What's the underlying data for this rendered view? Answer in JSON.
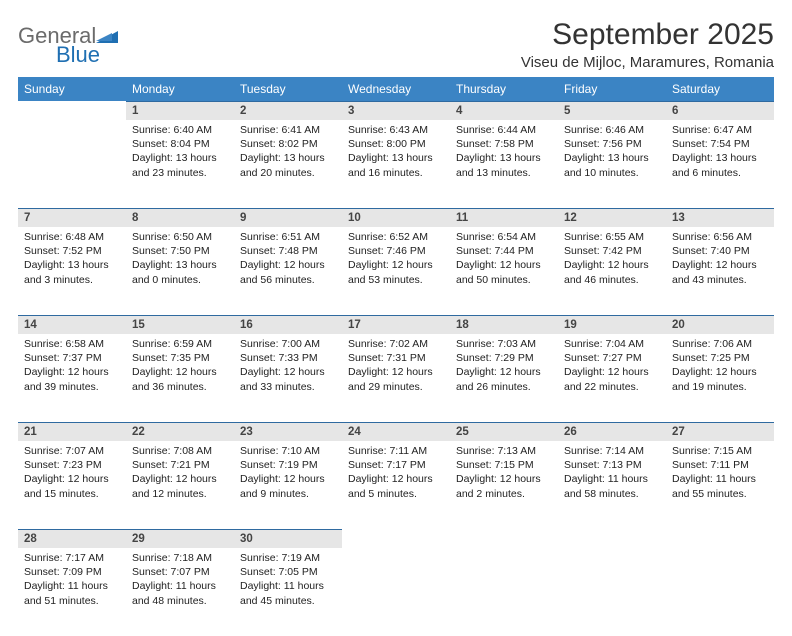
{
  "brand": {
    "word1": "General",
    "word2": "Blue",
    "text_color_gray": "#6b6b6b",
    "text_color_blue": "#1f6fb2",
    "mark_color": "#1f6fb2"
  },
  "header": {
    "title": "September 2025",
    "location": "Viseu de Mijloc, Maramures, Romania"
  },
  "style": {
    "header_bg": "#3b84c4",
    "daynum_bg": "#e6e6e6",
    "daynum_border": "#2f6aa0",
    "text_color": "#222222"
  },
  "weekdays": [
    "Sunday",
    "Monday",
    "Tuesday",
    "Wednesday",
    "Thursday",
    "Friday",
    "Saturday"
  ],
  "weeks": [
    [
      null,
      {
        "n": "1",
        "sunrise": "6:40 AM",
        "sunset": "8:04 PM",
        "daylight": "13 hours and 23 minutes."
      },
      {
        "n": "2",
        "sunrise": "6:41 AM",
        "sunset": "8:02 PM",
        "daylight": "13 hours and 20 minutes."
      },
      {
        "n": "3",
        "sunrise": "6:43 AM",
        "sunset": "8:00 PM",
        "daylight": "13 hours and 16 minutes."
      },
      {
        "n": "4",
        "sunrise": "6:44 AM",
        "sunset": "7:58 PM",
        "daylight": "13 hours and 13 minutes."
      },
      {
        "n": "5",
        "sunrise": "6:46 AM",
        "sunset": "7:56 PM",
        "daylight": "13 hours and 10 minutes."
      },
      {
        "n": "6",
        "sunrise": "6:47 AM",
        "sunset": "7:54 PM",
        "daylight": "13 hours and 6 minutes."
      }
    ],
    [
      {
        "n": "7",
        "sunrise": "6:48 AM",
        "sunset": "7:52 PM",
        "daylight": "13 hours and 3 minutes."
      },
      {
        "n": "8",
        "sunrise": "6:50 AM",
        "sunset": "7:50 PM",
        "daylight": "13 hours and 0 minutes."
      },
      {
        "n": "9",
        "sunrise": "6:51 AM",
        "sunset": "7:48 PM",
        "daylight": "12 hours and 56 minutes."
      },
      {
        "n": "10",
        "sunrise": "6:52 AM",
        "sunset": "7:46 PM",
        "daylight": "12 hours and 53 minutes."
      },
      {
        "n": "11",
        "sunrise": "6:54 AM",
        "sunset": "7:44 PM",
        "daylight": "12 hours and 50 minutes."
      },
      {
        "n": "12",
        "sunrise": "6:55 AM",
        "sunset": "7:42 PM",
        "daylight": "12 hours and 46 minutes."
      },
      {
        "n": "13",
        "sunrise": "6:56 AM",
        "sunset": "7:40 PM",
        "daylight": "12 hours and 43 minutes."
      }
    ],
    [
      {
        "n": "14",
        "sunrise": "6:58 AM",
        "sunset": "7:37 PM",
        "daylight": "12 hours and 39 minutes."
      },
      {
        "n": "15",
        "sunrise": "6:59 AM",
        "sunset": "7:35 PM",
        "daylight": "12 hours and 36 minutes."
      },
      {
        "n": "16",
        "sunrise": "7:00 AM",
        "sunset": "7:33 PM",
        "daylight": "12 hours and 33 minutes."
      },
      {
        "n": "17",
        "sunrise": "7:02 AM",
        "sunset": "7:31 PM",
        "daylight": "12 hours and 29 minutes."
      },
      {
        "n": "18",
        "sunrise": "7:03 AM",
        "sunset": "7:29 PM",
        "daylight": "12 hours and 26 minutes."
      },
      {
        "n": "19",
        "sunrise": "7:04 AM",
        "sunset": "7:27 PM",
        "daylight": "12 hours and 22 minutes."
      },
      {
        "n": "20",
        "sunrise": "7:06 AM",
        "sunset": "7:25 PM",
        "daylight": "12 hours and 19 minutes."
      }
    ],
    [
      {
        "n": "21",
        "sunrise": "7:07 AM",
        "sunset": "7:23 PM",
        "daylight": "12 hours and 15 minutes."
      },
      {
        "n": "22",
        "sunrise": "7:08 AM",
        "sunset": "7:21 PM",
        "daylight": "12 hours and 12 minutes."
      },
      {
        "n": "23",
        "sunrise": "7:10 AM",
        "sunset": "7:19 PM",
        "daylight": "12 hours and 9 minutes."
      },
      {
        "n": "24",
        "sunrise": "7:11 AM",
        "sunset": "7:17 PM",
        "daylight": "12 hours and 5 minutes."
      },
      {
        "n": "25",
        "sunrise": "7:13 AM",
        "sunset": "7:15 PM",
        "daylight": "12 hours and 2 minutes."
      },
      {
        "n": "26",
        "sunrise": "7:14 AM",
        "sunset": "7:13 PM",
        "daylight": "11 hours and 58 minutes."
      },
      {
        "n": "27",
        "sunrise": "7:15 AM",
        "sunset": "7:11 PM",
        "daylight": "11 hours and 55 minutes."
      }
    ],
    [
      {
        "n": "28",
        "sunrise": "7:17 AM",
        "sunset": "7:09 PM",
        "daylight": "11 hours and 51 minutes."
      },
      {
        "n": "29",
        "sunrise": "7:18 AM",
        "sunset": "7:07 PM",
        "daylight": "11 hours and 48 minutes."
      },
      {
        "n": "30",
        "sunrise": "7:19 AM",
        "sunset": "7:05 PM",
        "daylight": "11 hours and 45 minutes."
      },
      null,
      null,
      null,
      null
    ]
  ],
  "labels": {
    "sunrise_prefix": "Sunrise: ",
    "sunset_prefix": "Sunset: ",
    "daylight_prefix": "Daylight: "
  }
}
